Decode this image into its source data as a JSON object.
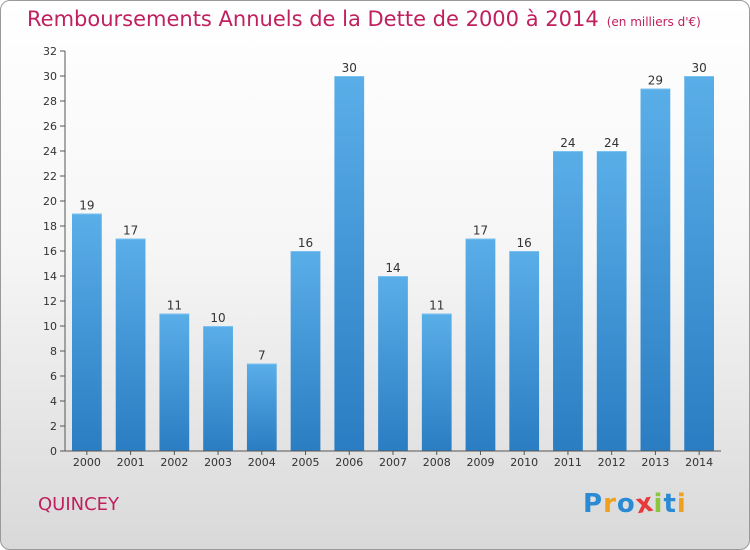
{
  "chart_data": {
    "type": "bar",
    "title": "Remboursements Annuels de la Dette de 2000 à 2014",
    "unit": "(en milliers d'€)",
    "categories": [
      "2000",
      "2001",
      "2002",
      "2003",
      "2004",
      "2005",
      "2006",
      "2007",
      "2008",
      "2009",
      "2010",
      "2011",
      "2012",
      "2013",
      "2014"
    ],
    "values": [
      19,
      17,
      11,
      10,
      7,
      16,
      30,
      14,
      11,
      17,
      16,
      24,
      24,
      29,
      30
    ],
    "ylim": [
      0,
      32
    ],
    "yticks": [
      0,
      2,
      4,
      6,
      8,
      10,
      12,
      14,
      16,
      18,
      20,
      22,
      24,
      26,
      28,
      30,
      32
    ],
    "xlabel": "",
    "ylabel": "",
    "grid": false
  },
  "commune": "QUINCEY",
  "logo": {
    "text": "Proxiti",
    "letters": [
      {
        "char": "P",
        "color": "#2a8ad4"
      },
      {
        "char": "r",
        "color": "#f0a020"
      },
      {
        "char": "o",
        "color": "#2a8ad4"
      },
      {
        "char": "x",
        "color": "#e83a3a"
      },
      {
        "char": "i",
        "color": "#8cc63f"
      },
      {
        "char": "t",
        "color": "#2a8ad4"
      },
      {
        "char": "i",
        "color": "#f0a020"
      }
    ]
  },
  "colors": {
    "title": "#c0205e",
    "bar_top": "#5aaee8",
    "bar_bottom": "#2a7dc2",
    "axis": "#555555"
  }
}
